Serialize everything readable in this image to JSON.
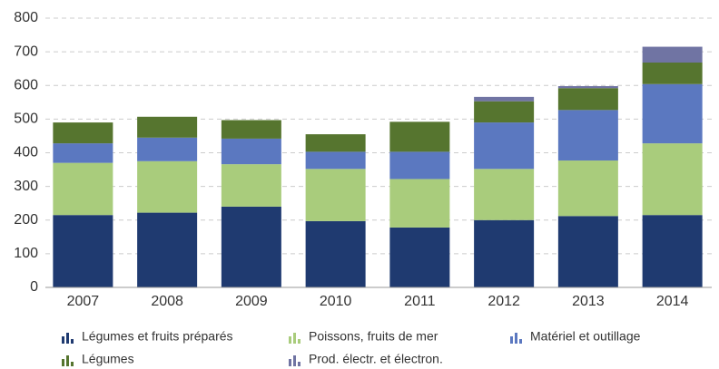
{
  "chart_data": {
    "type": "stacked_bar",
    "categories": [
      "2007",
      "2008",
      "2009",
      "2010",
      "2011",
      "2012",
      "2013",
      "2014"
    ],
    "series": [
      {
        "name": "Légumes et fruits préparés",
        "color": "#1f3a70",
        "values": [
          215,
          222,
          240,
          197,
          178,
          200,
          212,
          215
        ]
      },
      {
        "name": "Poissons, fruits de mer",
        "color": "#a9cc7c",
        "values": [
          155,
          153,
          126,
          155,
          144,
          152,
          165,
          213
        ]
      },
      {
        "name": "Matériel et outillage",
        "color": "#5b78c0",
        "values": [
          58,
          70,
          76,
          51,
          81,
          138,
          150,
          176
        ]
      },
      {
        "name": "Légumes",
        "color": "#56752f",
        "values": [
          62,
          62,
          55,
          52,
          89,
          63,
          65,
          64
        ]
      },
      {
        "name": "Prod. électr. et électron.",
        "color": "#7074a3",
        "values": [
          0,
          0,
          0,
          0,
          0,
          13,
          6,
          47
        ]
      }
    ],
    "ylim": [
      0,
      800
    ],
    "yticks": [
      0,
      100,
      200,
      300,
      400,
      500,
      600,
      700,
      800
    ],
    "grid": true
  }
}
